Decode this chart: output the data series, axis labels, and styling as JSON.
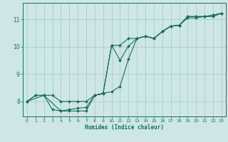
{
  "xlabel": "Humidex (Indice chaleur)",
  "bg_color": "#cde8e4",
  "grid_color": "#a8cccc",
  "line_color": "#1a6b60",
  "xlim": [
    -0.5,
    23.5
  ],
  "ylim": [
    7.45,
    11.6
  ],
  "yticks": [
    8,
    9,
    10,
    11
  ],
  "xticks": [
    0,
    1,
    2,
    3,
    4,
    5,
    6,
    7,
    8,
    9,
    10,
    11,
    12,
    13,
    14,
    15,
    16,
    17,
    18,
    19,
    20,
    21,
    22,
    23
  ],
  "line1_x": [
    0,
    1,
    2,
    3,
    4,
    5,
    6,
    7,
    8,
    9,
    10,
    11,
    12,
    13,
    14,
    15,
    16,
    17,
    18,
    19,
    20,
    21,
    22,
    23
  ],
  "line1_y": [
    8.0,
    8.22,
    8.22,
    8.22,
    8.0,
    8.0,
    8.0,
    8.0,
    8.22,
    8.28,
    10.05,
    10.05,
    10.3,
    10.3,
    10.38,
    10.3,
    10.55,
    10.75,
    10.78,
    11.05,
    11.05,
    11.1,
    11.1,
    11.22
  ],
  "line2_x": [
    0,
    1,
    2,
    3,
    4,
    5,
    6,
    7,
    8,
    9,
    10,
    11,
    12,
    13,
    14,
    15,
    16,
    17,
    18,
    19,
    20,
    21,
    22,
    23
  ],
  "line2_y": [
    8.0,
    8.22,
    8.22,
    7.7,
    7.65,
    7.7,
    7.75,
    7.78,
    8.22,
    8.3,
    10.05,
    9.5,
    10.02,
    10.3,
    10.38,
    10.3,
    10.55,
    10.75,
    10.78,
    11.1,
    11.1,
    11.1,
    11.15,
    11.22
  ],
  "line3_x": [
    0,
    2,
    4,
    5,
    6,
    7,
    8,
    9,
    10,
    11,
    12,
    13,
    14,
    15,
    16,
    17,
    18,
    19,
    20,
    21,
    22,
    23
  ],
  "line3_y": [
    8.0,
    8.22,
    7.65,
    7.65,
    7.65,
    7.65,
    8.22,
    8.3,
    8.35,
    8.55,
    9.55,
    10.3,
    10.38,
    10.3,
    10.55,
    10.75,
    10.78,
    11.1,
    11.1,
    11.1,
    11.15,
    11.22
  ]
}
